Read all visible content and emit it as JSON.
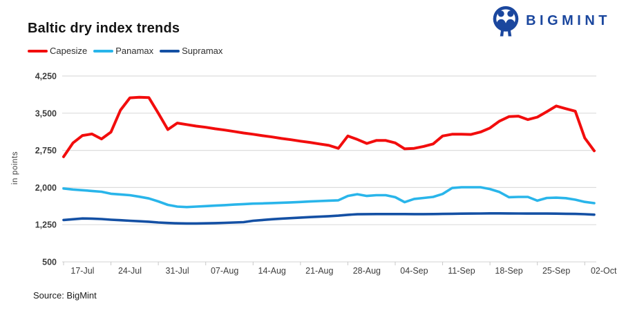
{
  "logo": {
    "text": "BIGMINT",
    "color": "#1b479e"
  },
  "header": {
    "title": "Baltic dry index trends"
  },
  "legend": [
    {
      "label": "Capesize",
      "color": "#f20d0d"
    },
    {
      "label": "Panamax",
      "color": "#29b5ea"
    },
    {
      "label": "Supramax",
      "color": "#1450a4"
    }
  ],
  "footer": {
    "source": "Source: BigMint"
  },
  "chart_data": {
    "type": "line",
    "title": "Baltic dry index trends",
    "xlabel": "",
    "ylabel": "in points",
    "ylim": [
      500,
      4250
    ],
    "y_ticks": [
      500,
      1250,
      2000,
      2750,
      3500,
      4250
    ],
    "grid": "horizontal",
    "legend_position": "top-left",
    "colors": {
      "grid": "#dcdcdc",
      "axis_text": "#3d3d3d",
      "tick": "#c8c8c8"
    },
    "x_tick_labels": [
      "17-Jul",
      "24-Jul",
      "31-Jul",
      "07-Aug",
      "14-Aug",
      "21-Aug",
      "28-Aug",
      "04-Sep",
      "11-Sep",
      "18-Sep",
      "25-Sep",
      "02-Oct"
    ],
    "x": [
      "15-Jul",
      "16-Jul",
      "17-Jul",
      "18-Jul",
      "19-Jul",
      "22-Jul",
      "23-Jul",
      "24-Jul",
      "25-Jul",
      "26-Jul",
      "29-Jul",
      "30-Jul",
      "31-Jul",
      "01-Aug",
      "02-Aug",
      "05-Aug",
      "06-Aug",
      "07-Aug",
      "08-Aug",
      "09-Aug",
      "12-Aug",
      "13-Aug",
      "14-Aug",
      "15-Aug",
      "16-Aug",
      "19-Aug",
      "20-Aug",
      "21-Aug",
      "22-Aug",
      "23-Aug",
      "26-Aug",
      "27-Aug",
      "28-Aug",
      "29-Aug",
      "30-Aug",
      "02-Sep",
      "03-Sep",
      "04-Sep",
      "05-Sep",
      "06-Sep",
      "09-Sep",
      "10-Sep",
      "11-Sep",
      "12-Sep",
      "13-Sep",
      "16-Sep",
      "17-Sep",
      "18-Sep",
      "19-Sep",
      "20-Sep",
      "23-Sep",
      "24-Sep",
      "25-Sep",
      "26-Sep",
      "27-Sep",
      "30-Sep",
      "01-Oct"
    ],
    "series": [
      {
        "name": "Capesize",
        "color": "#f20d0d",
        "width": 4,
        "values": [
          2620,
          2900,
          3050,
          3080,
          2980,
          3120,
          3560,
          3810,
          3820,
          3815,
          3500,
          3170,
          3300,
          3270,
          3240,
          3215,
          3185,
          3160,
          3130,
          3100,
          3075,
          3045,
          3020,
          2990,
          2965,
          2935,
          2910,
          2880,
          2850,
          2790,
          3040,
          2970,
          2890,
          2950,
          2950,
          2900,
          2780,
          2790,
          2830,
          2880,
          3040,
          3075,
          3075,
          3070,
          3120,
          3200,
          3340,
          3430,
          3440,
          3370,
          3420,
          3530,
          3645,
          3590,
          3540,
          3000,
          2740
        ]
      },
      {
        "name": "Panamax",
        "color": "#29b5ea",
        "width": 3.6,
        "values": [
          1980,
          1960,
          1945,
          1930,
          1915,
          1875,
          1860,
          1845,
          1815,
          1780,
          1720,
          1650,
          1615,
          1605,
          1615,
          1625,
          1635,
          1645,
          1655,
          1665,
          1675,
          1680,
          1687,
          1694,
          1700,
          1708,
          1718,
          1727,
          1735,
          1742,
          1830,
          1865,
          1830,
          1845,
          1845,
          1805,
          1705,
          1770,
          1790,
          1810,
          1870,
          1990,
          2005,
          2005,
          2005,
          1970,
          1910,
          1805,
          1810,
          1810,
          1735,
          1790,
          1795,
          1785,
          1755,
          1710,
          1685
        ]
      },
      {
        "name": "Supramax",
        "color": "#1450a4",
        "width": 3.6,
        "values": [
          1345,
          1360,
          1375,
          1372,
          1365,
          1350,
          1340,
          1330,
          1320,
          1310,
          1295,
          1285,
          1278,
          1275,
          1275,
          1278,
          1282,
          1288,
          1295,
          1302,
          1330,
          1345,
          1360,
          1372,
          1382,
          1394,
          1403,
          1412,
          1422,
          1432,
          1450,
          1460,
          1463,
          1465,
          1465,
          1465,
          1465,
          1463,
          1463,
          1465,
          1468,
          1470,
          1473,
          1475,
          1476,
          1478,
          1478,
          1477,
          1476,
          1475,
          1475,
          1474,
          1473,
          1470,
          1468,
          1462,
          1452
        ]
      }
    ]
  }
}
